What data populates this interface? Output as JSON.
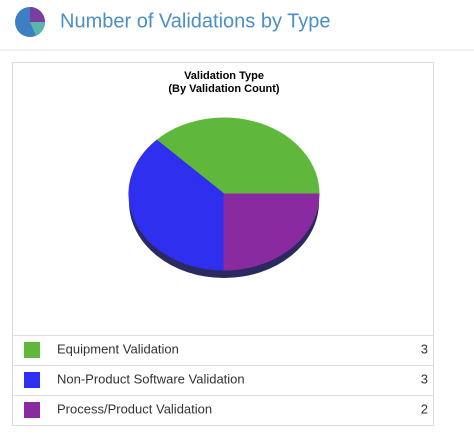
{
  "header": {
    "title": "Number of Validations by Type"
  },
  "chart_data": {
    "type": "pie",
    "title": "Validation Type",
    "subtitle": "(By Validation Count)",
    "categories": [
      "Equipment Validation",
      "Non-Product Software Validation",
      "Process/Product Validation"
    ],
    "values": [
      3,
      3,
      2
    ],
    "colors": [
      "#5fb83c",
      "#2f2ff0",
      "#8a2aa0"
    ]
  }
}
